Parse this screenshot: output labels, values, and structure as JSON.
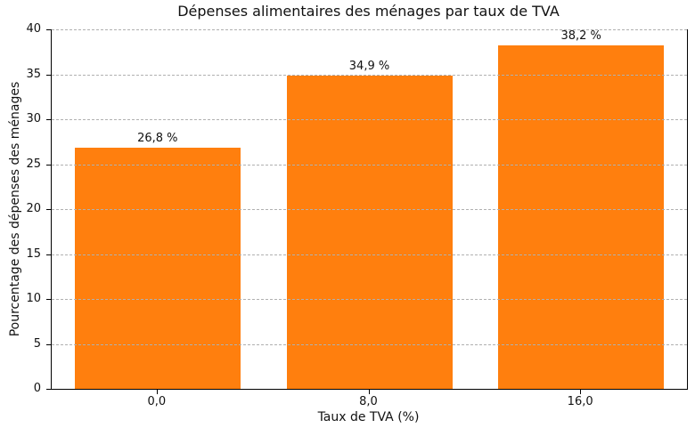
{
  "chart_data": {
    "type": "bar",
    "title": "Dépenses alimentaires des ménages par taux de TVA",
    "xlabel": "Taux de TVA (%)",
    "ylabel": "Pourcentage des dépenses des ménages",
    "categories": [
      "0,0",
      "8,0",
      "16,0"
    ],
    "values": [
      26.8,
      34.9,
      38.2
    ],
    "value_labels": [
      "26,8 %",
      "34,9 %",
      "38,2 %"
    ],
    "ylim": [
      0,
      40
    ],
    "yticks": [
      0,
      5,
      10,
      15,
      20,
      25,
      30,
      35,
      40
    ],
    "grid": "horizontal dashed, drawn above bars",
    "legend": "none",
    "bar_color": "#ff7f0e",
    "grid_color": "#b0b0b0",
    "spine_color": "#000000",
    "text_color": "#111111",
    "background_color": "#ffffff"
  }
}
